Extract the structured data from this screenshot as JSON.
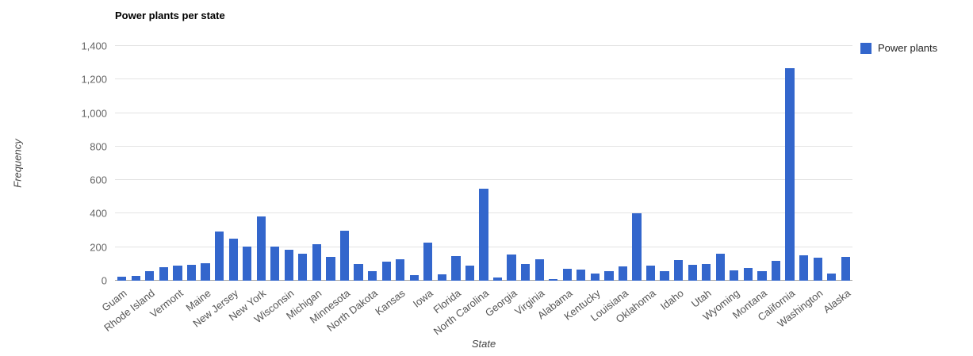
{
  "colors": {
    "background": "#ffffff",
    "gridline": "#e3e3e3",
    "baseline": "#9e9e9e",
    "tick_text": "#666666",
    "bar": "#3366cc"
  },
  "chart_data": {
    "type": "bar",
    "title": "Power plants per state",
    "xlabel": "State",
    "ylabel": "Frequency",
    "ylim": [
      0,
      1400
    ],
    "y_tick_step": 200,
    "y_tick_labels": [
      "0",
      "200",
      "400",
      "600",
      "800",
      "1,000",
      "1,200",
      "1,400"
    ],
    "grid": true,
    "legend": {
      "label": "Power plants",
      "position": "right",
      "color": "#3366cc"
    },
    "bar_color": "#3366cc",
    "label_every_n_bars": 2,
    "x_tick_labels": [
      "Guam",
      "Rhode Island",
      "Vermont",
      "Maine",
      "New Jersey",
      "New York",
      "Wisconsin",
      "Michigan",
      "Minnesota",
      "North Dakota",
      "Kansas",
      "Iowa",
      "Florida",
      "North Carolina",
      "Georgia",
      "Virginia",
      "Alabama",
      "Kentucky",
      "Louisiana",
      "Oklahoma",
      "Idaho",
      "Utah",
      "Wyoming",
      "Montana",
      "California",
      "Washington",
      "Alaska"
    ],
    "values": [
      25,
      30,
      55,
      80,
      90,
      95,
      105,
      295,
      250,
      205,
      385,
      205,
      185,
      160,
      220,
      140,
      300,
      100,
      55,
      115,
      130,
      35,
      225,
      40,
      145,
      90,
      550,
      20,
      155,
      100,
      130,
      8,
      70,
      65,
      45,
      55,
      85,
      400,
      90,
      55,
      125,
      95,
      100,
      160,
      60,
      75,
      55,
      120,
      1270,
      150,
      135,
      45,
      140
    ]
  }
}
